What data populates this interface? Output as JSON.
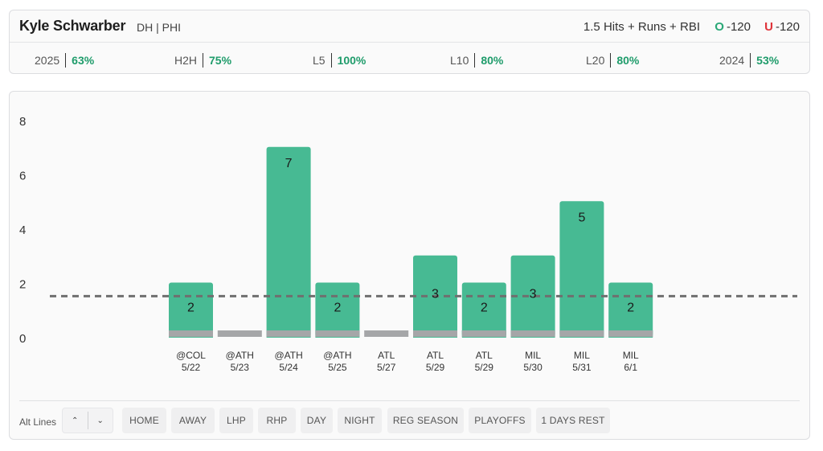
{
  "header": {
    "player_name": "Kyle Schwarber",
    "player_meta": "DH | PHI",
    "prop_line": "1.5 Hits + Runs + RBI",
    "over": {
      "tag": "O",
      "odds": "-120"
    },
    "under": {
      "tag": "U",
      "odds": "-120"
    }
  },
  "stats": [
    {
      "label": "2025",
      "value": "63%"
    },
    {
      "label": "H2H",
      "value": "75%"
    },
    {
      "label": "L5",
      "value": "100%"
    },
    {
      "label": "L10",
      "value": "80%"
    },
    {
      "label": "L20",
      "value": "80%"
    },
    {
      "label": "2024",
      "value": "53%"
    }
  ],
  "chart_data": {
    "type": "bar",
    "categories": [
      "@COL 5/22",
      "@ATH 5/23",
      "@ATH 5/24",
      "@ATH 5/25",
      "ATL 5/27",
      "ATL 5/29",
      "ATL 5/29",
      "MIL 5/30",
      "MIL 5/31",
      "MIL 6/1"
    ],
    "opponents": [
      "@COL",
      "@ATH",
      "@ATH",
      "@ATH",
      "ATL",
      "ATL",
      "ATL",
      "MIL",
      "MIL",
      "MIL"
    ],
    "dates": [
      "5/22",
      "5/23",
      "5/24",
      "5/25",
      "5/27",
      "5/29",
      "5/29",
      "5/30",
      "5/31",
      "6/1"
    ],
    "values": [
      2,
      0,
      7,
      2,
      0,
      3,
      2,
      3,
      5,
      2
    ],
    "value_labels": [
      "2",
      "",
      "7",
      "2",
      "",
      "3",
      "2",
      "3",
      "5",
      "2"
    ],
    "line": 1.5,
    "ylim": [
      0,
      8
    ],
    "yticks": [
      "0",
      "2",
      "4",
      "6",
      "8"
    ],
    "colors": {
      "bar": "#47ba93",
      "base": "#a5a6a8",
      "line": "#6f6f6f"
    }
  },
  "filters": {
    "alt_lines_label": "Alt Lines",
    "up_icon": "chevron-up-icon",
    "down_icon": "chevron-down-icon",
    "up_glyph": "⌃",
    "down_glyph": "⌄",
    "chips": [
      "HOME",
      "AWAY",
      "LHP",
      "RHP",
      "DAY",
      "NIGHT",
      "REG SEASON",
      "PLAYOFFS",
      "1 DAYS REST"
    ]
  }
}
